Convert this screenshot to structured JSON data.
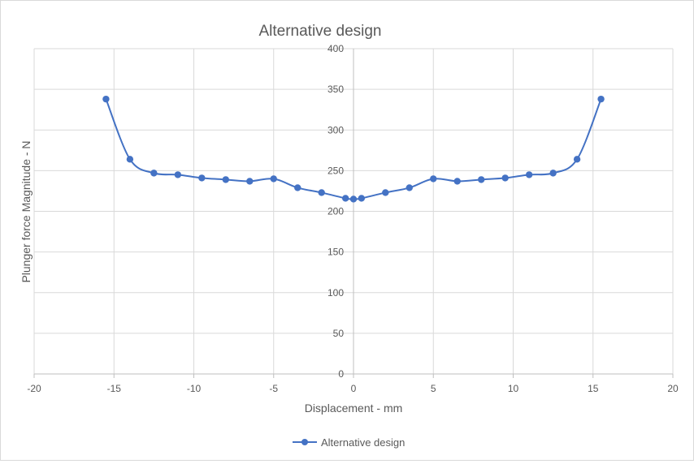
{
  "chart_data": {
    "type": "line",
    "title": "Alternative design",
    "xlabel": "Displacement - mm",
    "ylabel": "Plunger force Magnitude - N",
    "xlim": [
      -20,
      20
    ],
    "ylim": [
      0,
      400
    ],
    "xticks": [
      "-20",
      "-15",
      "-10",
      "-5",
      "0",
      "5",
      "10",
      "15",
      "20"
    ],
    "yticks": [
      "0",
      "50",
      "100",
      "150",
      "200",
      "250",
      "300",
      "350",
      "400"
    ],
    "grid": true,
    "legend": "bottom",
    "series": [
      {
        "name": "Alternative design",
        "color": "#4472c4",
        "marker": "circle",
        "smooth": true,
        "x": [
          -15.5,
          -14,
          -12.5,
          -11,
          -9.5,
          -8,
          -6.5,
          -5,
          -3.5,
          -2,
          -0.5,
          0,
          0.5,
          2,
          3.5,
          5,
          6.5,
          8,
          9.5,
          11,
          12.5,
          14,
          15.5
        ],
        "y": [
          338,
          264,
          247,
          245,
          241,
          239,
          237,
          240,
          229,
          223,
          216,
          215,
          216,
          223,
          229,
          240,
          237,
          239,
          241,
          245,
          247,
          264,
          338
        ]
      }
    ]
  }
}
